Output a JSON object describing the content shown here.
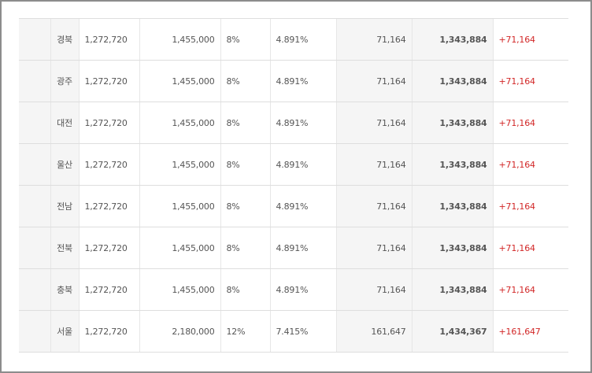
{
  "colors": {
    "diff_text": "#d22727"
  },
  "rows": [
    {
      "region": "경북",
      "base": "1,272,720",
      "payment": "1,455,000",
      "percent": "8%",
      "rate": "4.891%",
      "insurance": "71,164",
      "total": "1,343,884",
      "diff": "+71,164"
    },
    {
      "region": "광주",
      "base": "1,272,720",
      "payment": "1,455,000",
      "percent": "8%",
      "rate": "4.891%",
      "insurance": "71,164",
      "total": "1,343,884",
      "diff": "+71,164"
    },
    {
      "region": "대전",
      "base": "1,272,720",
      "payment": "1,455,000",
      "percent": "8%",
      "rate": "4.891%",
      "insurance": "71,164",
      "total": "1,343,884",
      "diff": "+71,164"
    },
    {
      "region": "울산",
      "base": "1,272,720",
      "payment": "1,455,000",
      "percent": "8%",
      "rate": "4.891%",
      "insurance": "71,164",
      "total": "1,343,884",
      "diff": "+71,164"
    },
    {
      "region": "전남",
      "base": "1,272,720",
      "payment": "1,455,000",
      "percent": "8%",
      "rate": "4.891%",
      "insurance": "71,164",
      "total": "1,343,884",
      "diff": "+71,164"
    },
    {
      "region": "전북",
      "base": "1,272,720",
      "payment": "1,455,000",
      "percent": "8%",
      "rate": "4.891%",
      "insurance": "71,164",
      "total": "1,343,884",
      "diff": "+71,164"
    },
    {
      "region": "충북",
      "base": "1,272,720",
      "payment": "1,455,000",
      "percent": "8%",
      "rate": "4.891%",
      "insurance": "71,164",
      "total": "1,343,884",
      "diff": "+71,164"
    },
    {
      "region": "서울",
      "base": "1,272,720",
      "payment": "2,180,000",
      "percent": "12%",
      "rate": "7.415%",
      "insurance": "161,647",
      "total": "1,434,367",
      "diff": "+161,647"
    }
  ]
}
